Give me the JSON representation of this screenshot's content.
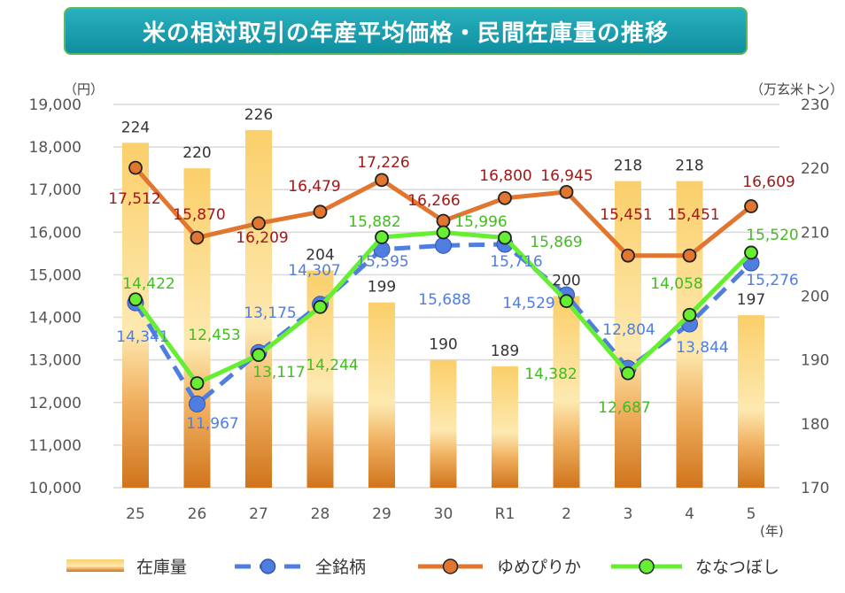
{
  "chart_data": {
    "type": "bar+line",
    "title": "米の相対取引の年産平均価格・民間在庫量の推移",
    "ylabel_left": "（円）",
    "ylabel_right": "（万玄米トン）",
    "xlabel": "(年)",
    "categories": [
      "25",
      "26",
      "27",
      "28",
      "29",
      "30",
      "R1",
      "2",
      "3",
      "4",
      "5"
    ],
    "ylim_left": [
      10000,
      19000
    ],
    "yticks_left": [
      "10,000",
      "11,000",
      "12,000",
      "13,000",
      "14,000",
      "15,000",
      "16,000",
      "17,000",
      "18,000",
      "19,000"
    ],
    "ylim_right": [
      170,
      230
    ],
    "yticks_right": [
      "170",
      "180",
      "190",
      "200",
      "210",
      "220",
      "230"
    ],
    "grid": true,
    "legend_placement": "bottom",
    "bars": {
      "name": "在庫量",
      "axis": "right",
      "values": [
        224,
        220,
        226,
        204,
        199,
        190,
        189,
        200,
        218,
        218,
        197
      ],
      "labels": [
        "224",
        "220",
        "226",
        "204",
        "199",
        "190",
        "189",
        "200",
        "218",
        "218",
        "197"
      ],
      "color": "#f6b94a"
    },
    "series": [
      {
        "name": "全銘柄",
        "axis": "left",
        "style": "dashed",
        "color": "#4f7de0",
        "values": [
          14341,
          11967,
          13175,
          14307,
          15595,
          15688,
          15716,
          14529,
          12804,
          13844,
          15276
        ],
        "labels": [
          "14,341",
          "11,967",
          "13,175",
          "14,307",
          "15,595",
          "15,688",
          "15,716",
          "14,529",
          "12,804",
          "13,844",
          "15,276"
        ]
      },
      {
        "name": "ゆめぴりか",
        "axis": "left",
        "style": "solid",
        "color": "#e0762f",
        "label_color": "#a01818",
        "values": [
          17512,
          15870,
          16209,
          16479,
          17226,
          16266,
          16800,
          16945,
          15451,
          15451,
          16609
        ],
        "labels": [
          "17,512",
          "15,870",
          "16,209",
          "16,479",
          "17,226",
          "16,266",
          "16,800",
          "16,945",
          "15,451",
          "15,451",
          "16,609"
        ]
      },
      {
        "name": "ななつぼし",
        "axis": "left",
        "style": "solid",
        "color": "#66ee33",
        "label_color": "#44bb22",
        "values": [
          14422,
          12453,
          13117,
          14244,
          15882,
          15996,
          15869,
          14382,
          12687,
          14058,
          15520
        ],
        "labels": [
          "14,422",
          "12,453",
          "13,117",
          "14,244",
          "15,882",
          "15,996",
          "15,869",
          "14,382",
          "12,687",
          "14,058",
          "15,520"
        ]
      }
    ]
  }
}
